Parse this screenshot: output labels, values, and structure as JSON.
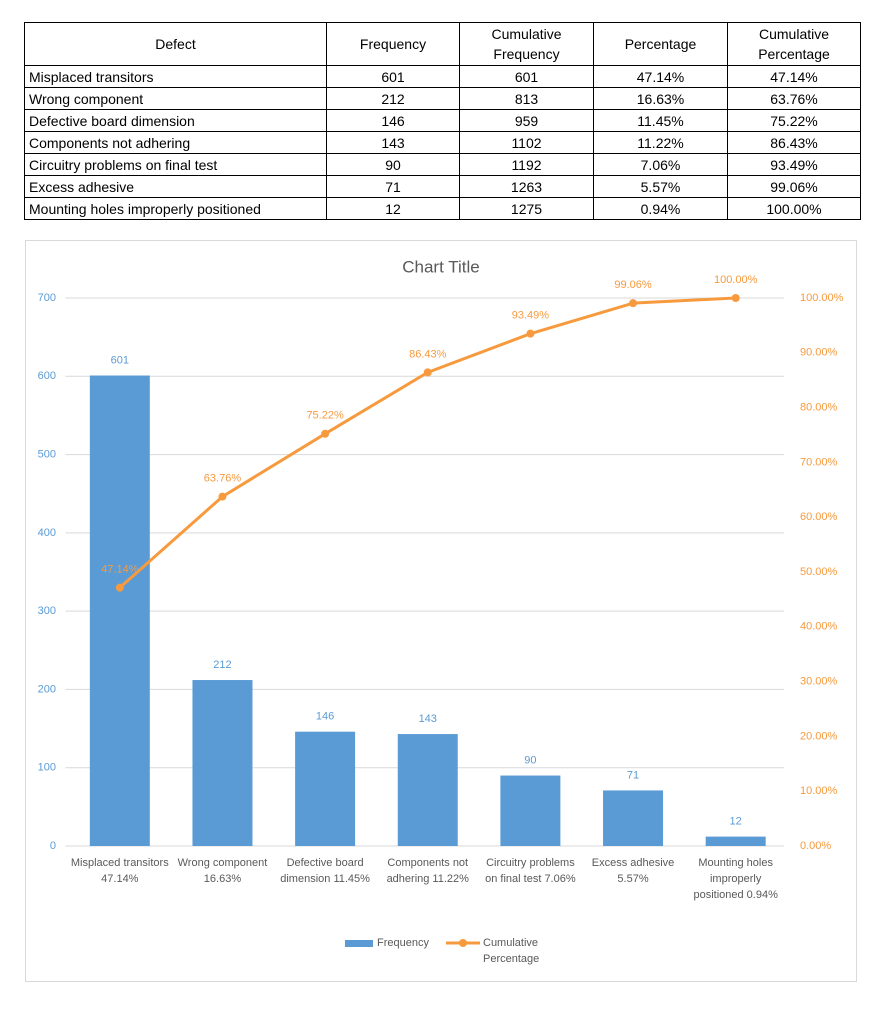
{
  "table": {
    "header": [
      "Defect",
      "Frequency",
      "Cumulative Frequency",
      "Percentage",
      "Cumulative Percentage"
    ],
    "rows": [
      [
        "Misplaced transitors",
        "601",
        "601",
        "47.14%",
        "47.14%"
      ],
      [
        "Wrong component",
        "212",
        "813",
        "16.63%",
        "63.76%"
      ],
      [
        "Defective board dimension",
        "146",
        "959",
        "11.45%",
        "75.22%"
      ],
      [
        "Components not adhering",
        "143",
        "1102",
        "11.22%",
        "86.43%"
      ],
      [
        "Circuitry problems on final test",
        "90",
        "1192",
        "7.06%",
        "93.49%"
      ],
      [
        "Excess adhesive",
        "71",
        "1263",
        "5.57%",
        "99.06%"
      ],
      [
        "Mounting holes improperly positioned",
        "12",
        "1275",
        "0.94%",
        "100.00%"
      ]
    ]
  },
  "chart_data": {
    "type": "combo",
    "title": "Chart Title",
    "categories": [
      "Misplaced transitors 47.14%",
      "Wrong component 16.63%",
      "Defective board dimension 11.45%",
      "Components not adhering 11.22%",
      "Circuitry problems on final test 7.06%",
      "Excess adhesive 5.57%",
      "Mounting holes improperly positioned 0.94%"
    ],
    "series": [
      {
        "name": "Frequency",
        "type": "bar",
        "color": "#5b9bd5",
        "values": [
          601,
          212,
          146,
          143,
          90,
          71,
          12
        ]
      },
      {
        "name": "Cumulative Percentage",
        "type": "line",
        "axis": "y2",
        "color": "#f79a3e",
        "values": [
          47.14,
          63.76,
          75.22,
          86.43,
          93.49,
          99.06,
          100
        ],
        "value_labels": [
          "47.14%",
          "63.76%",
          "75.22%",
          "86.43%",
          "93.49%",
          "99.06%",
          "100.00%"
        ]
      }
    ],
    "ylim": [
      0,
      700
    ],
    "yticks": [
      0,
      100,
      200,
      300,
      400,
      500,
      600,
      700
    ],
    "y2lim": [
      0,
      100
    ],
    "y2ticks": [
      {
        "value": 0,
        "label": "0.00%"
      },
      {
        "value": 10,
        "label": "10.00%"
      },
      {
        "value": 20,
        "label": "20.00%"
      },
      {
        "value": 30,
        "label": "30.00%"
      },
      {
        "value": 40,
        "label": "40.00%"
      },
      {
        "value": 50,
        "label": "50.00%"
      },
      {
        "value": 60,
        "label": "60.00%"
      },
      {
        "value": 70,
        "label": "70.00%"
      },
      {
        "value": 80,
        "label": "80.00%"
      },
      {
        "value": 90,
        "label": "90.00%"
      },
      {
        "value": 100,
        "label": "100.00%"
      }
    ],
    "grid": true,
    "legend": "bottom"
  }
}
